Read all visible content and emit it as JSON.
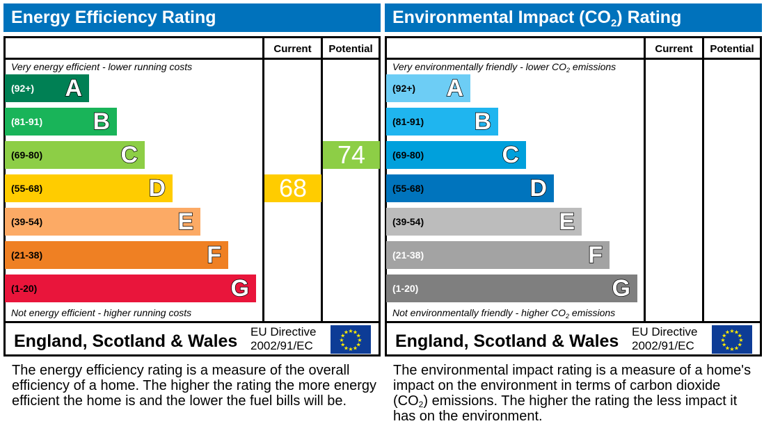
{
  "chart_data": [
    {
      "type": "bar",
      "id": "energy",
      "title": {
        "pre": "Energy Efficiency Rating",
        "sub": "",
        "post": ""
      },
      "columns": [
        "Current",
        "Potential"
      ],
      "top_note": {
        "pre": "Very energy efficient - lower running costs",
        "sub": "",
        "post": ""
      },
      "bottom_note": {
        "pre": "Not energy efficient - higher running costs",
        "sub": "",
        "post": ""
      },
      "bands": [
        {
          "letter": "A",
          "range": "(92+)",
          "color": "#008054",
          "text_color": "#ffffff"
        },
        {
          "letter": "B",
          "range": "(81-91)",
          "color": "#19b459",
          "text_color": "#ffffff"
        },
        {
          "letter": "C",
          "range": "(69-80)",
          "color": "#8dce46",
          "text_color": "#000000"
        },
        {
          "letter": "D",
          "range": "(55-68)",
          "color": "#ffcc00",
          "text_color": "#000000"
        },
        {
          "letter": "E",
          "range": "(39-54)",
          "color": "#fcaa65",
          "text_color": "#000000"
        },
        {
          "letter": "F",
          "range": "(21-38)",
          "color": "#ef8023",
          "text_color": "#000000"
        },
        {
          "letter": "G",
          "range": "(1-20)",
          "color": "#e9153b",
          "text_color": "#000000"
        }
      ],
      "current": {
        "value": "68",
        "band": "D"
      },
      "potential": {
        "value": "74",
        "band": "C"
      },
      "region": "England, Scotland & Wales",
      "directive": [
        "EU Directive",
        "2002/91/EC"
      ],
      "description": {
        "pre": "The energy efficiency rating is a measure of the overall efficiency of a home. The higher the rating the more energy efficient the home is and the lower the fuel bills will be.",
        "sub": "",
        "post": ""
      }
    },
    {
      "type": "bar",
      "id": "environmental",
      "title": {
        "pre": "Environmental Impact (CO",
        "sub": "2",
        "post": ") Rating"
      },
      "columns": [
        "Current",
        "Potential"
      ],
      "top_note": {
        "pre": "Very environmentally friendly - lower CO",
        "sub": "2",
        "post": " emissions"
      },
      "bottom_note": {
        "pre": "Not environmentally friendly - higher CO",
        "sub": "2",
        "post": " emissions"
      },
      "bands": [
        {
          "letter": "A",
          "range": "(92+)",
          "color": "#6dcdf5",
          "text_color": "#000000"
        },
        {
          "letter": "B",
          "range": "(81-91)",
          "color": "#1fb5ef",
          "text_color": "#000000"
        },
        {
          "letter": "C",
          "range": "(69-80)",
          "color": "#00a0dc",
          "text_color": "#000000"
        },
        {
          "letter": "D",
          "range": "(55-68)",
          "color": "#0074bd",
          "text_color": "#000000"
        },
        {
          "letter": "E",
          "range": "(39-54)",
          "color": "#bcbcbc",
          "text_color": "#000000"
        },
        {
          "letter": "F",
          "range": "(21-38)",
          "color": "#a3a3a3",
          "text_color": "#ffffff"
        },
        {
          "letter": "G",
          "range": "(1-20)",
          "color": "#7f7f7f",
          "text_color": "#ffffff"
        }
      ],
      "current": null,
      "potential": null,
      "region": "England, Scotland & Wales",
      "directive": [
        "EU Directive",
        "2002/91/EC"
      ],
      "description": {
        "pre": "The environmental impact rating is a measure of a home's impact on the environment in terms of carbon dioxide (CO",
        "sub": "2",
        "post": ") emissions. The higher the rating the less impact it has on the environment."
      }
    }
  ]
}
